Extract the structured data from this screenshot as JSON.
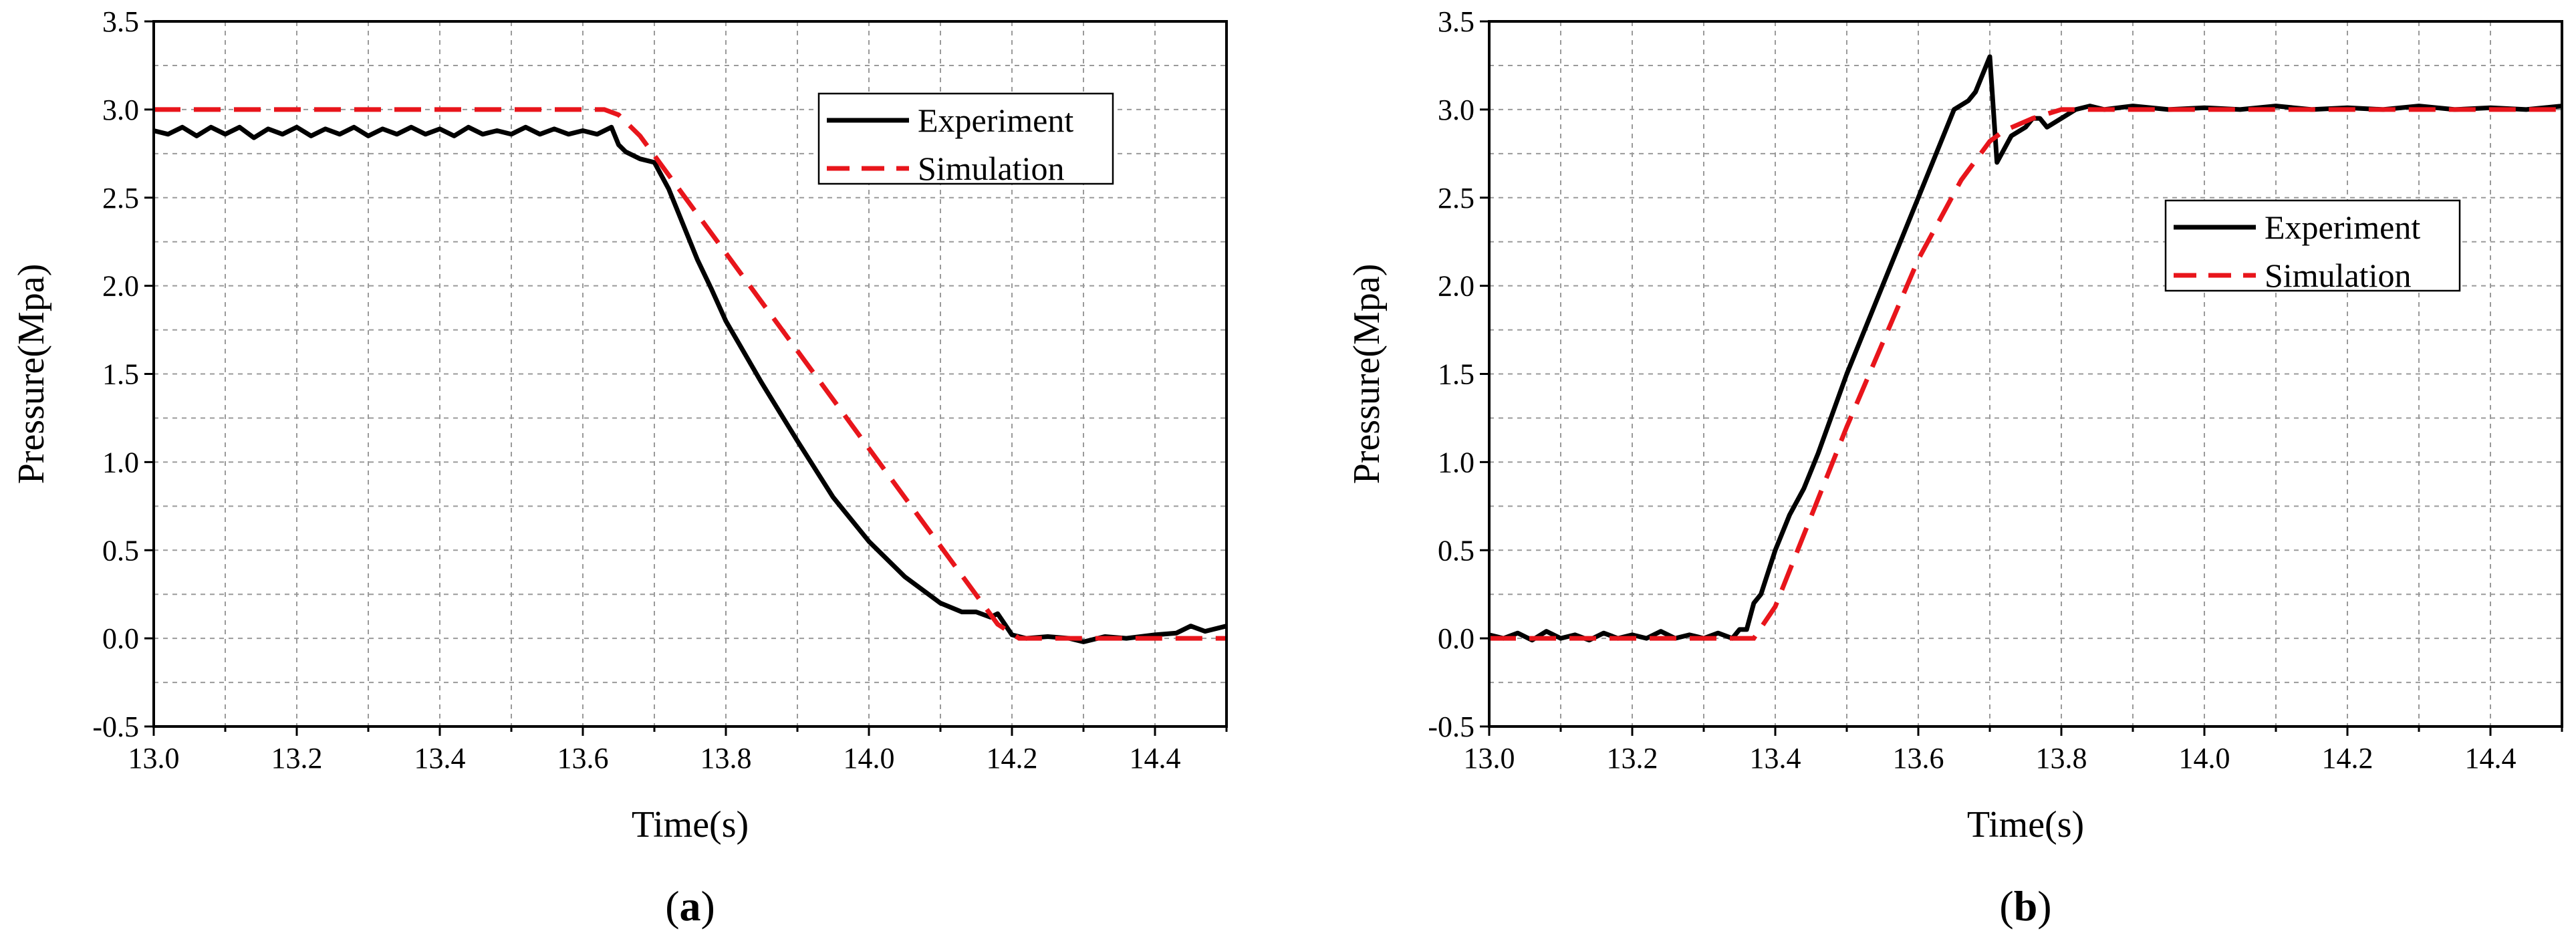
{
  "colors": {
    "experiment": "#000000",
    "simulation": "#e8151b"
  },
  "chart_data": [
    {
      "type": "line",
      "panel_label": "a",
      "xlabel": "Time(s)",
      "ylabel": "Pressure(Mpa)",
      "xlim": [
        13.0,
        14.5
      ],
      "ylim": [
        -0.5,
        3.5
      ],
      "xticks": [
        "13.0",
        "13.2",
        "13.4",
        "13.6",
        "13.8",
        "14.0",
        "14.2",
        "14.4"
      ],
      "yticks": [
        "-0.5",
        "0.0",
        "0.5",
        "1.0",
        "1.5",
        "2.0",
        "2.5",
        "3.0",
        "3.5"
      ],
      "grid": true,
      "legend_position": "top-right",
      "series": [
        {
          "name": "Experiment",
          "style": "solid",
          "color": "#000000",
          "x": [
            13.0,
            13.02,
            13.04,
            13.06,
            13.08,
            13.1,
            13.12,
            13.14,
            13.16,
            13.18,
            13.2,
            13.22,
            13.24,
            13.26,
            13.28,
            13.3,
            13.32,
            13.34,
            13.36,
            13.38,
            13.4,
            13.42,
            13.44,
            13.46,
            13.48,
            13.5,
            13.52,
            13.54,
            13.56,
            13.58,
            13.6,
            13.62,
            13.64,
            13.65,
            13.66,
            13.68,
            13.7,
            13.72,
            13.74,
            13.76,
            13.78,
            13.8,
            13.85,
            13.9,
            13.95,
            14.0,
            14.05,
            14.1,
            14.13,
            14.15,
            14.17,
            14.18,
            14.19,
            14.2,
            14.22,
            14.25,
            14.28,
            14.3,
            14.33,
            14.36,
            14.4,
            14.43,
            14.45,
            14.47,
            14.5
          ],
          "y": [
            2.88,
            2.86,
            2.9,
            2.85,
            2.9,
            2.86,
            2.9,
            2.84,
            2.89,
            2.86,
            2.9,
            2.85,
            2.89,
            2.86,
            2.9,
            2.85,
            2.89,
            2.86,
            2.9,
            2.86,
            2.89,
            2.85,
            2.9,
            2.86,
            2.88,
            2.86,
            2.9,
            2.86,
            2.89,
            2.86,
            2.88,
            2.86,
            2.9,
            2.8,
            2.76,
            2.72,
            2.7,
            2.55,
            2.35,
            2.15,
            1.98,
            1.8,
            1.45,
            1.12,
            0.8,
            0.55,
            0.35,
            0.2,
            0.15,
            0.15,
            0.12,
            0.14,
            0.08,
            0.02,
            0.0,
            0.01,
            0.0,
            -0.02,
            0.01,
            0.0,
            0.02,
            0.03,
            0.07,
            0.04,
            0.07
          ]
        },
        {
          "name": "Simulation",
          "style": "dashed",
          "color": "#e8151b",
          "x": [
            13.0,
            13.63,
            13.65,
            13.68,
            14.18,
            14.21,
            14.5
          ],
          "y": [
            3.0,
            3.0,
            2.97,
            2.85,
            0.08,
            0.0,
            0.0
          ]
        }
      ]
    },
    {
      "type": "line",
      "panel_label": "b",
      "xlabel": "Time(s)",
      "ylabel": "Pressure(Mpa)",
      "xlim": [
        13.0,
        14.5
      ],
      "ylim": [
        -0.5,
        3.5
      ],
      "xticks": [
        "13.0",
        "13.2",
        "13.4",
        "13.6",
        "13.8",
        "14.0",
        "14.2",
        "14.4"
      ],
      "yticks": [
        "-0.5",
        "0.0",
        "0.5",
        "1.0",
        "1.5",
        "2.0",
        "2.5",
        "3.0",
        "3.5"
      ],
      "grid": true,
      "legend_position": "center-right",
      "series": [
        {
          "name": "Experiment",
          "style": "solid",
          "color": "#000000",
          "x": [
            13.0,
            13.02,
            13.04,
            13.06,
            13.08,
            13.1,
            13.12,
            13.14,
            13.16,
            13.18,
            13.2,
            13.22,
            13.24,
            13.26,
            13.28,
            13.3,
            13.32,
            13.34,
            13.35,
            13.36,
            13.37,
            13.38,
            13.4,
            13.42,
            13.44,
            13.46,
            13.5,
            13.55,
            13.6,
            13.65,
            13.67,
            13.68,
            13.7,
            13.71,
            13.73,
            13.75,
            13.76,
            13.77,
            13.78,
            13.8,
            13.82,
            13.84,
            13.86,
            13.9,
            13.95,
            14.0,
            14.05,
            14.1,
            14.15,
            14.2,
            14.25,
            14.3,
            14.35,
            14.4,
            14.45,
            14.5
          ],
          "y": [
            0.02,
            0.0,
            0.03,
            -0.01,
            0.04,
            0.0,
            0.02,
            -0.01,
            0.03,
            0.0,
            0.02,
            0.0,
            0.04,
            0.0,
            0.02,
            0.0,
            0.03,
            0.0,
            0.05,
            0.05,
            0.2,
            0.25,
            0.5,
            0.7,
            0.85,
            1.05,
            1.5,
            2.0,
            2.5,
            3.0,
            3.05,
            3.1,
            3.3,
            2.7,
            2.85,
            2.9,
            2.95,
            2.95,
            2.9,
            2.95,
            3.0,
            3.02,
            3.0,
            3.02,
            3.0,
            3.01,
            3.0,
            3.02,
            3.0,
            3.01,
            3.0,
            3.02,
            3.0,
            3.01,
            3.0,
            3.02
          ]
        },
        {
          "name": "Simulation",
          "style": "dashed",
          "color": "#e8151b",
          "x": [
            13.0,
            13.37,
            13.4,
            13.5,
            13.6,
            13.66,
            13.7,
            13.72,
            13.76,
            13.8,
            14.5
          ],
          "y": [
            0.0,
            0.0,
            0.18,
            1.2,
            2.15,
            2.6,
            2.82,
            2.88,
            2.95,
            3.0,
            3.0
          ]
        }
      ]
    }
  ]
}
